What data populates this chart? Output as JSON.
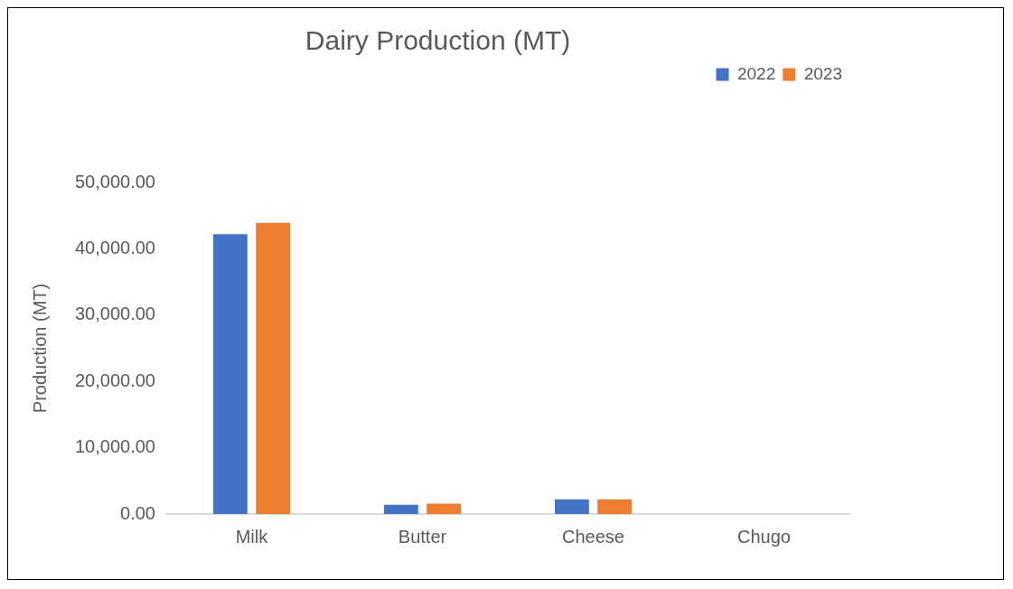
{
  "chart_data": {
    "type": "bar",
    "title": "Dairy Production (MT)",
    "ylabel": "Production (MT)",
    "categories": [
      "Milk",
      "Butter",
      "Cheese",
      "Chugo"
    ],
    "series": [
      {
        "name": "2022",
        "color": "#4472c4",
        "values": [
          42200,
          1400,
          2200,
          0
        ]
      },
      {
        "name": "2023",
        "color": "#ed7d31",
        "values": [
          43900,
          1550,
          2200,
          0
        ]
      }
    ],
    "ylim": [
      0,
      50000
    ],
    "yticks": [
      {
        "value": 0,
        "label": "0.00"
      },
      {
        "value": 10000,
        "label": "10,000.00"
      },
      {
        "value": 20000,
        "label": "20,000.00"
      },
      {
        "value": 30000,
        "label": "30,000.00"
      },
      {
        "value": 40000,
        "label": "40,000.00"
      },
      {
        "value": 50000,
        "label": "50,000.00"
      }
    ],
    "grid": false,
    "legend": "top right"
  }
}
